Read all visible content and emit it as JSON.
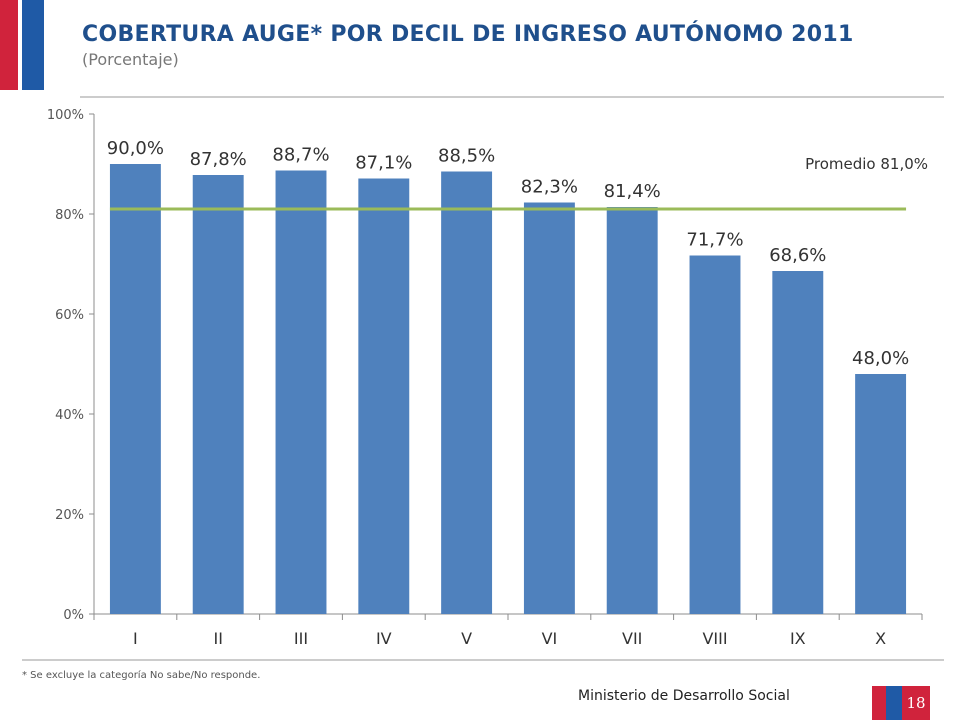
{
  "header": {
    "title": "COBERTURA AUGE* POR DECIL DE INGRESO AUTÓNOMO 2011",
    "subtitle": "(Porcentaje)"
  },
  "footer": {
    "footnote": "* Se excluye la categoría No sabe/No responde.",
    "ministry": "Ministerio de Desarrollo Social",
    "page_number": "18"
  },
  "colors": {
    "title": "#1f4f8c",
    "bar": "#4f81bd",
    "average_line": "#9bbb59",
    "flag_red": "#d0233c",
    "flag_blue": "#1f5aa6"
  },
  "chart_data": {
    "type": "bar",
    "title": "COBERTURA AUGE* POR DECIL DE INGRESO AUTÓNOMO 2011",
    "categories": [
      "I",
      "II",
      "III",
      "IV",
      "V",
      "VI",
      "VII",
      "VIII",
      "IX",
      "X"
    ],
    "values": [
      90.0,
      87.8,
      88.7,
      87.1,
      88.5,
      82.3,
      81.4,
      71.7,
      68.6,
      48.0
    ],
    "data_labels": [
      "90,0%",
      "87,8%",
      "88,7%",
      "87,1%",
      "88,5%",
      "82,3%",
      "81,4%",
      "71,7%",
      "68,6%",
      "48,0%"
    ],
    "ylim": [
      0,
      100
    ],
    "yticks": [
      0,
      20,
      40,
      60,
      80,
      100
    ],
    "ytick_labels": [
      "0%",
      "20%",
      "40%",
      "60%",
      "80%",
      "100%"
    ],
    "average": {
      "value": 81.0,
      "label": "Promedio 81,0%"
    },
    "xlabel": "",
    "ylabel": "",
    "grid": false,
    "legend": "none"
  }
}
